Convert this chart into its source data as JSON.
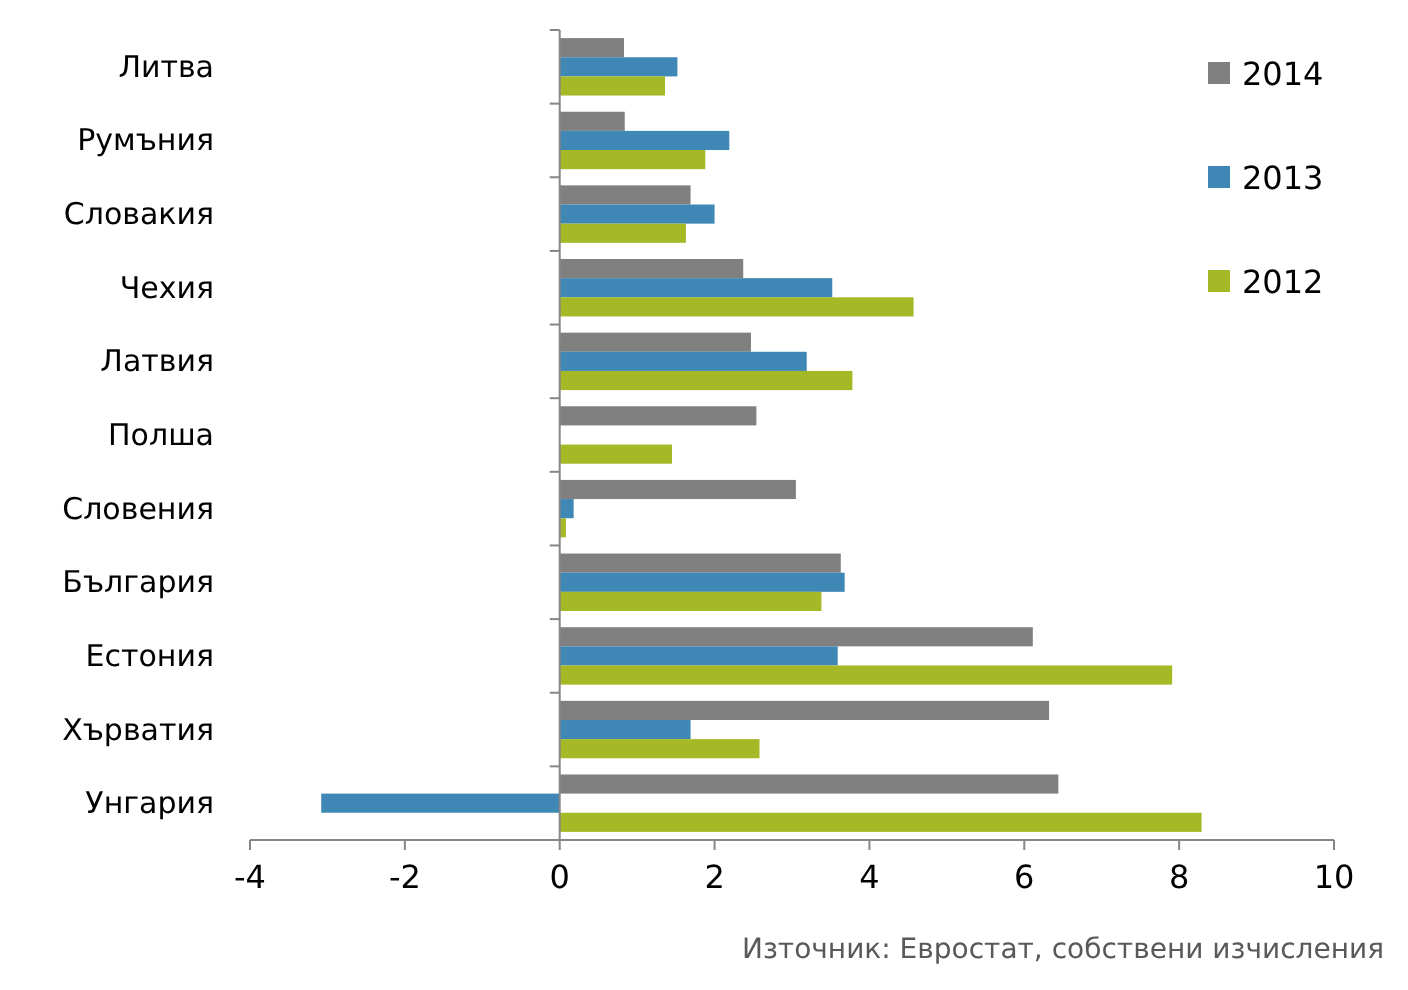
{
  "chart_data": {
    "type": "bar",
    "orientation": "horizontal",
    "categories": [
      "Литва",
      "Румъния",
      "Словакия",
      "Чехия",
      "Латвия",
      "Полша",
      "Словения",
      "България",
      "Естония",
      "Хърватия",
      "Унгария"
    ],
    "series": [
      {
        "name": "2014",
        "color": "#808080",
        "values": [
          0.83,
          0.84,
          1.69,
          2.37,
          2.47,
          2.54,
          3.05,
          3.63,
          6.11,
          6.32,
          6.44
        ]
      },
      {
        "name": "2013",
        "color": "#3f87b5",
        "values": [
          1.52,
          2.19,
          2.0,
          3.52,
          3.19,
          null,
          0.18,
          3.68,
          3.59,
          1.69,
          -3.08
        ]
      },
      {
        "name": "2012",
        "color": "#a5b826",
        "values": [
          1.36,
          1.88,
          1.63,
          4.57,
          3.78,
          1.45,
          0.08,
          3.38,
          7.91,
          2.58,
          8.29
        ]
      }
    ],
    "xlim": [
      -4,
      10
    ],
    "xticks": [
      -4,
      -2,
      0,
      2,
      4,
      6,
      8,
      10
    ],
    "legend": "top right",
    "annotations": [
      "Източник: Евростат, собствени изчисления"
    ]
  }
}
